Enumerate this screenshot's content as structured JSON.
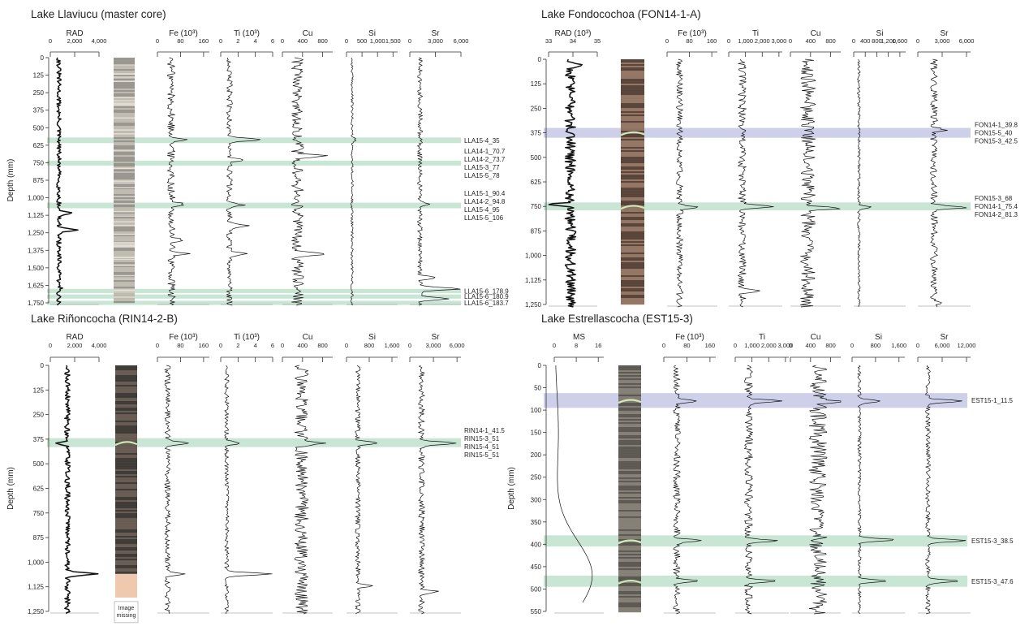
{
  "chart_data": [
    {
      "type": "line",
      "title": "Lake Llaviucu (master core)",
      "ylabel": "Depth (mm)",
      "ylim": [
        0,
        1780
      ],
      "depth_ticks": [
        "0",
        "125",
        "250",
        "375",
        "500",
        "625",
        "750",
        "875",
        "1,000",
        "1,125",
        "1,250",
        "1,375",
        "1,500",
        "1,625",
        "1,750"
      ],
      "depth_tick_values": [
        0,
        125,
        250,
        375,
        500,
        625,
        750,
        875,
        1000,
        1125,
        1250,
        1375,
        1500,
        1625,
        1750
      ],
      "tracks": [
        {
          "label": "RAD",
          "ticks": [
            "0",
            "2,000",
            "4,000"
          ],
          "tick_values": [
            0,
            2000,
            4000
          ],
          "xlim": [
            0,
            4000
          ],
          "base": 700,
          "noise": 180,
          "heavy": true,
          "spikes": [
            {
              "d": 1230,
              "v": 2400
            },
            {
              "d": 1110,
              "v": 1800
            },
            {
              "d": 1650,
              "v": 900
            }
          ]
        },
        {
          "label": "Fe (10³)",
          "ticks": [
            "0",
            "80",
            "160"
          ],
          "tick_values": [
            0,
            80,
            160
          ],
          "xlim": [
            0,
            180
          ],
          "base": 48,
          "noise": 14,
          "spikes": [
            {
              "d": 585,
              "v": 110
            },
            {
              "d": 1045,
              "v": 95
            },
            {
              "d": 1300,
              "v": 90
            },
            {
              "d": 1400,
              "v": 110
            }
          ]
        },
        {
          "label": "Ti (10³)",
          "ticks": [
            "0",
            "2",
            "4",
            "6"
          ],
          "tick_values": [
            0,
            2,
            4,
            6
          ],
          "xlim": [
            0,
            6
          ],
          "base": 1.0,
          "noise": 0.35,
          "spikes": [
            {
              "d": 585,
              "v": 4.8
            },
            {
              "d": 730,
              "v": 2.5
            },
            {
              "d": 1050,
              "v": 2.6
            },
            {
              "d": 1200,
              "v": 3.2
            },
            {
              "d": 1400,
              "v": 2.8
            }
          ]
        },
        {
          "label": "Cu",
          "ticks": [
            "0",
            "400",
            "800"
          ],
          "tick_values": [
            0,
            400,
            800
          ],
          "xlim": [
            0,
            1000
          ],
          "base": 300,
          "noise": 120,
          "spikes": [
            {
              "d": 700,
              "v": 900
            },
            {
              "d": 1400,
              "v": 900
            }
          ]
        },
        {
          "label": "Si",
          "ticks": [
            "0",
            "500",
            "1,000",
            "1,500"
          ],
          "tick_values": [
            0,
            500,
            1000,
            1500
          ],
          "xlim": [
            0,
            1650
          ],
          "base": 180,
          "noise": 40,
          "spikes": [
            {
              "d": 585,
              "v": 300
            }
          ]
        },
        {
          "label": "Sr",
          "ticks": [
            "0",
            "3,000",
            "6,000"
          ],
          "tick_values": [
            0,
            3000,
            6000
          ],
          "xlim": [
            0,
            6000
          ],
          "base": 1200,
          "noise": 300,
          "spikes": [
            {
              "d": 1570,
              "v": 3000
            },
            {
              "d": 1650,
              "v": 5800
            },
            {
              "d": 1720,
              "v": 4500
            },
            {
              "d": 1050,
              "v": 2200
            }
          ]
        }
      ],
      "bands": [
        {
          "d1": 570,
          "d2": 610,
          "color": "#bfe0cc",
          "labels": [
            "LLA15-4_35"
          ]
        },
        {
          "d1": 735,
          "d2": 770,
          "color": "#bfe0cc",
          "labels": [
            "LLA14-1_70.7",
            "LLA14-2_73.7",
            "LLA15-3_77",
            "LLA15-5_78"
          ]
        },
        {
          "d1": 1035,
          "d2": 1075,
          "color": "#bfe0cc",
          "labels": [
            "LLA15-1_90.4",
            "LLA14-2_94.8",
            "LLA15-4_95",
            "LLA15-5_106"
          ]
        },
        {
          "d1": 1650,
          "d2": 1680,
          "color": "#bfe0cc",
          "labels": [
            "LLA15-6_178.9"
          ]
        },
        {
          "d1": 1690,
          "d2": 1720,
          "color": "#bfe0cc",
          "labels": [
            "LLA15-6_180.9"
          ]
        },
        {
          "d1": 1735,
          "d2": 1765,
          "color": "#bfe0cc",
          "labels": [
            "LLA15-6_183.7"
          ]
        }
      ],
      "image_missing": ""
    },
    {
      "type": "line",
      "title": "Lake Fondocochoa (FON14-1-A)",
      "ylabel": "",
      "ylim": [
        0,
        1260
      ],
      "depth_ticks": [
        "0",
        "125",
        "250",
        "375",
        "500",
        "625",
        "750",
        "875",
        "1,000",
        "1,125",
        "1,250"
      ],
      "depth_tick_values": [
        0,
        125,
        250,
        375,
        500,
        625,
        750,
        875,
        1000,
        1125,
        1250
      ],
      "tracks": [
        {
          "label": "RAD (10³)",
          "ticks": [
            "33",
            "34",
            "35"
          ],
          "tick_values": [
            33,
            34,
            35
          ],
          "xlim": [
            33,
            35
          ],
          "base": 33.9,
          "noise": 0.22,
          "heavy": true,
          "spikes": [
            {
              "d": 30,
              "v": 34.5
            },
            {
              "d": 740,
              "v": 33.2
            }
          ]
        },
        {
          "label": "Fe (10³)",
          "ticks": [
            "0",
            "80",
            "160"
          ],
          "tick_values": [
            0,
            80,
            160
          ],
          "xlim": [
            0,
            180
          ],
          "base": 45,
          "noise": 12,
          "spikes": [
            {
              "d": 755,
              "v": 110
            }
          ]
        },
        {
          "label": "Ti",
          "ticks": [
            "0",
            "1,000",
            "2,000",
            "3,000"
          ],
          "tick_values": [
            0,
            1000,
            2000,
            3000
          ],
          "xlim": [
            0,
            3200
          ],
          "base": 800,
          "noise": 250,
          "spikes": [
            {
              "d": 750,
              "v": 2600
            },
            {
              "d": 1180,
              "v": 1900
            }
          ]
        },
        {
          "label": "Cu",
          "ticks": [
            "0",
            "400",
            "800"
          ],
          "tick_values": [
            0,
            400,
            800
          ],
          "xlim": [
            0,
            1000
          ],
          "base": 350,
          "noise": 150,
          "spikes": [
            {
              "d": 760,
              "v": 950
            }
          ]
        },
        {
          "label": "Si",
          "ticks": [
            "0",
            "400",
            "800",
            "1,200",
            "1,600"
          ],
          "tick_values": [
            0,
            400,
            800,
            1200,
            1600
          ],
          "xlim": [
            0,
            1800
          ],
          "base": 180,
          "noise": 50,
          "spikes": [
            {
              "d": 755,
              "v": 600
            }
          ]
        },
        {
          "label": "Sr",
          "ticks": [
            "0",
            "3,000",
            "6,000"
          ],
          "tick_values": [
            0,
            3000,
            6000
          ],
          "xlim": [
            0,
            6500
          ],
          "base": 2000,
          "noise": 450,
          "spikes": [
            {
              "d": 360,
              "v": 3300
            },
            {
              "d": 755,
              "v": 6200
            },
            {
              "d": 1240,
              "v": 3200
            }
          ]
        }
      ],
      "bands": [
        {
          "d1": 350,
          "d2": 400,
          "color": "#c5c8e6",
          "labels": [
            "FON14-1_39.8",
            "FON15-5_40",
            "FON15-3_42.5"
          ]
        },
        {
          "d1": 730,
          "d2": 770,
          "color": "#bfe0cc",
          "labels": [
            "FON15-3_68",
            "FON14-1_75.4",
            "FON14-2_81.3"
          ]
        }
      ],
      "image_missing": ""
    },
    {
      "type": "line",
      "title": "Lake Riñoncocha (RIN14-2-B)",
      "ylabel": "Depth (mm)",
      "ylim": [
        0,
        1310
      ],
      "depth_ticks": [
        "0",
        "125",
        "250",
        "375",
        "500",
        "625",
        "750",
        "875",
        "1,000",
        "1,125",
        "1,250"
      ],
      "depth_tick_values": [
        0,
        125,
        250,
        375,
        500,
        625,
        750,
        875,
        1000,
        1125,
        1250
      ],
      "tracks": [
        {
          "label": "RAD",
          "ticks": [
            "0",
            "2,000",
            "4,000"
          ],
          "tick_values": [
            0,
            2000,
            4000
          ],
          "xlim": [
            0,
            4000
          ],
          "base": 1400,
          "noise": 220,
          "heavy": true,
          "spikes": [
            {
              "d": 1060,
              "v": 3800
            },
            {
              "d": 395,
              "v": 500
            }
          ]
        },
        {
          "label": "Fe (10³)",
          "ticks": [
            "0",
            "80",
            "160"
          ],
          "tick_values": [
            0,
            80,
            160
          ],
          "xlim": [
            0,
            180
          ],
          "base": 35,
          "noise": 10,
          "spikes": [
            {
              "d": 395,
              "v": 110
            },
            {
              "d": 1060,
              "v": 90
            }
          ]
        },
        {
          "label": "Ti (10³)",
          "ticks": [
            "0",
            "2",
            "4",
            "6"
          ],
          "tick_values": [
            0,
            2,
            4,
            6
          ],
          "xlim": [
            0,
            6
          ],
          "base": 0.7,
          "noise": 0.25,
          "spikes": [
            {
              "d": 395,
              "v": 2.2
            },
            {
              "d": 1060,
              "v": 5.8
            }
          ]
        },
        {
          "label": "Cu",
          "ticks": [
            "0",
            "400",
            "800"
          ],
          "tick_values": [
            0,
            400,
            800
          ],
          "xlim": [
            0,
            1000
          ],
          "base": 380,
          "noise": 140,
          "spikes": [
            {
              "d": 395,
              "v": 900
            }
          ]
        },
        {
          "label": "Si",
          "ticks": [
            "0",
            "800",
            "1,600"
          ],
          "tick_values": [
            0,
            800,
            1600
          ],
          "xlim": [
            0,
            1800
          ],
          "base": 400,
          "noise": 90,
          "spikes": [
            {
              "d": 395,
              "v": 1100
            },
            {
              "d": 1120,
              "v": 900
            }
          ]
        },
        {
          "label": "Sr",
          "ticks": [
            "0",
            "3,000",
            "6,000"
          ],
          "tick_values": [
            0,
            3000,
            6000
          ],
          "xlim": [
            0,
            6500
          ],
          "base": 1500,
          "noise": 400,
          "spikes": [
            {
              "d": 395,
              "v": 6000
            },
            {
              "d": 1150,
              "v": 3500
            }
          ]
        }
      ],
      "bands": [
        {
          "d1": 370,
          "d2": 415,
          "color": "#bfe0cc",
          "labels": [
            "RIN14-1_41.5",
            "RIN15-3_51",
            "RIN15-4_51",
            "RIN15-5_51"
          ]
        }
      ],
      "image_missing": "Image missing"
    },
    {
      "type": "line",
      "title": "Lake Estrellascocha (EST15-3)",
      "ylabel": "Depth (mm)",
      "ylim": [
        0,
        550
      ],
      "depth_ticks": [
        "0",
        "50",
        "100",
        "150",
        "200",
        "250",
        "300",
        "350",
        "400",
        "450",
        "500",
        "550"
      ],
      "depth_tick_values": [
        0,
        50,
        100,
        150,
        200,
        250,
        300,
        350,
        400,
        450,
        500,
        550
      ],
      "tracks": [
        {
          "label": "MS",
          "ticks": [
            "0",
            "8",
            "16"
          ],
          "tick_values": [
            0,
            8,
            16
          ],
          "xlim": [
            0,
            18
          ],
          "smooth": true,
          "heavy": false
        },
        {
          "label": "Fe (10³)",
          "ticks": [
            "0",
            "80",
            "160"
          ],
          "tick_values": [
            0,
            80,
            160
          ],
          "xlim": [
            0,
            180
          ],
          "base": 45,
          "noise": 12,
          "spikes": [
            {
              "d": 80,
              "v": 120
            },
            {
              "d": 392,
              "v": 130
            },
            {
              "d": 482,
              "v": 130
            }
          ]
        },
        {
          "label": "Ti",
          "ticks": [
            "0",
            "1,000",
            "2,000",
            "3,000"
          ],
          "tick_values": [
            0,
            1000,
            2000,
            3000
          ],
          "xlim": [
            0,
            3200
          ],
          "base": 800,
          "noise": 250,
          "spikes": [
            {
              "d": 80,
              "v": 2800
            },
            {
              "d": 392,
              "v": 2400
            },
            {
              "d": 482,
              "v": 2600
            }
          ]
        },
        {
          "label": "Cu",
          "ticks": [
            "0",
            "400",
            "800"
          ],
          "tick_values": [
            0,
            400,
            800
          ],
          "xlim": [
            0,
            1000
          ],
          "base": 550,
          "noise": 180,
          "spikes": [
            {
              "d": 80,
              "v": 950
            }
          ]
        },
        {
          "label": "Si",
          "ticks": [
            "0",
            "800",
            "1,600"
          ],
          "tick_values": [
            0,
            800,
            1600
          ],
          "xlim": [
            0,
            1800
          ],
          "base": 250,
          "noise": 60,
          "spikes": [
            {
              "d": 80,
              "v": 1000
            },
            {
              "d": 390,
              "v": 1500
            },
            {
              "d": 482,
              "v": 1200
            }
          ]
        },
        {
          "label": "Sr",
          "ticks": [
            "0",
            "6,000",
            "12,000"
          ],
          "tick_values": [
            0,
            6000,
            12000
          ],
          "xlim": [
            0,
            13000
          ],
          "base": 2500,
          "noise": 600,
          "spikes": [
            {
              "d": 80,
              "v": 11000
            },
            {
              "d": 392,
              "v": 12000
            },
            {
              "d": 482,
              "v": 10000
            }
          ]
        }
      ],
      "bands": [
        {
          "d1": 62,
          "d2": 95,
          "color": "#c5c8e6",
          "labels": [
            "EST15-1_11.5"
          ]
        },
        {
          "d1": 380,
          "d2": 405,
          "color": "#bfe0cc",
          "labels": [
            "EST15-3_38.5"
          ]
        },
        {
          "d1": 470,
          "d2": 495,
          "color": "#bfe0cc",
          "labels": [
            "EST15-3_47.6"
          ]
        }
      ],
      "image_missing": ""
    }
  ]
}
